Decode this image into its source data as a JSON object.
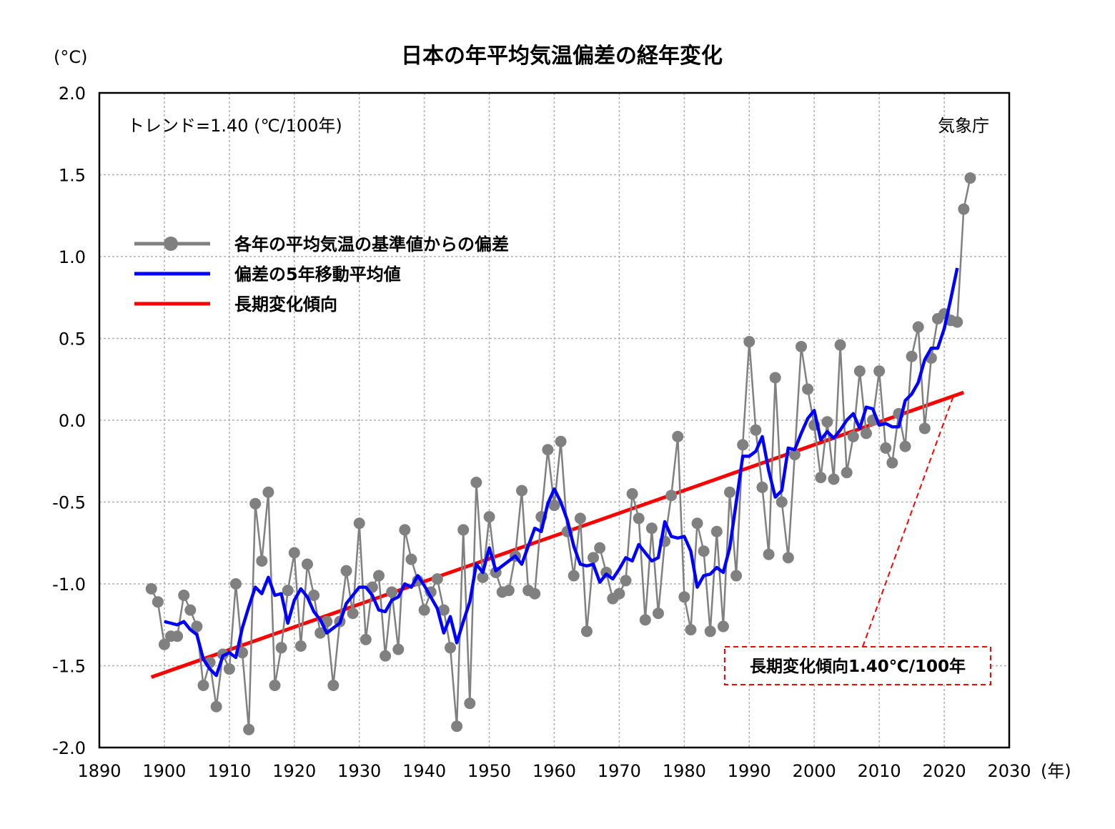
{
  "chart_data": {
    "type": "line",
    "title": "日本の年平均気温偏差の経年変化",
    "y_unit_label": "(°C)",
    "x_unit_label": "(年)",
    "trend_text": "トレンド=1.40 (℃/100年)",
    "source_text": "気象庁",
    "callout_text": "長期変化傾向1.40℃/100年",
    "xlim": [
      1890,
      2030
    ],
    "ylim": [
      -2.0,
      2.0
    ],
    "x_ticks": [
      1890,
      1900,
      1910,
      1920,
      1930,
      1940,
      1950,
      1960,
      1970,
      1980,
      1990,
      2000,
      2010,
      2020,
      2030
    ],
    "y_ticks": [
      2.0,
      1.5,
      1.0,
      0.5,
      0.0,
      -0.5,
      -1.0,
      -1.5,
      -2.0
    ],
    "x_tick_labels": [
      "1890",
      "1900",
      "1910",
      "1920",
      "1930",
      "1940",
      "1950",
      "1960",
      "1970",
      "1980",
      "1990",
      "2000",
      "2010",
      "2020",
      "2030"
    ],
    "y_tick_labels": [
      "2.0",
      "1.5",
      "1.0",
      "0.5",
      "0.0",
      "-0.5",
      "-1.0",
      "-1.5",
      "-2.0"
    ],
    "grid": true,
    "legend_position": "upper-left",
    "colors": {
      "annual": "#808080",
      "moving_avg": "#0000ff",
      "trend": "#ff0000",
      "callout": "#ff0000",
      "grid": "#b0b0b0"
    },
    "series": [
      {
        "name": "各年の平均気温の基準値からの偏差",
        "style": "line-markers",
        "x": [
          1898,
          1899,
          1900,
          1901,
          1902,
          1903,
          1904,
          1905,
          1906,
          1907,
          1908,
          1909,
          1910,
          1911,
          1912,
          1913,
          1914,
          1915,
          1916,
          1917,
          1918,
          1919,
          1920,
          1921,
          1922,
          1923,
          1924,
          1925,
          1926,
          1927,
          1928,
          1929,
          1930,
          1931,
          1932,
          1933,
          1934,
          1935,
          1936,
          1937,
          1938,
          1939,
          1940,
          1941,
          1942,
          1943,
          1944,
          1945,
          1946,
          1947,
          1948,
          1949,
          1950,
          1951,
          1952,
          1953,
          1954,
          1955,
          1956,
          1957,
          1958,
          1959,
          1960,
          1961,
          1962,
          1963,
          1964,
          1965,
          1966,
          1967,
          1968,
          1969,
          1970,
          1971,
          1972,
          1973,
          1974,
          1975,
          1976,
          1977,
          1978,
          1979,
          1980,
          1981,
          1982,
          1983,
          1984,
          1985,
          1986,
          1987,
          1988,
          1989,
          1990,
          1991,
          1992,
          1993,
          1994,
          1995,
          1996,
          1997,
          1998,
          1999,
          2000,
          2001,
          2002,
          2003,
          2004,
          2005,
          2006,
          2007,
          2008,
          2009,
          2010,
          2011,
          2012,
          2013,
          2014,
          2015,
          2016,
          2017,
          2018,
          2019,
          2020,
          2021,
          2022,
          2023,
          2024
        ],
        "values": [
          -1.03,
          -1.11,
          -1.37,
          -1.32,
          -1.32,
          -1.07,
          -1.16,
          -1.26,
          -1.62,
          -1.48,
          -1.75,
          -1.43,
          -1.52,
          -1.0,
          -1.42,
          -1.89,
          -0.51,
          -0.86,
          -0.44,
          -1.62,
          -1.39,
          -1.04,
          -0.81,
          -1.38,
          -0.88,
          -1.07,
          -1.3,
          -1.23,
          -1.62,
          -1.23,
          -0.92,
          -1.18,
          -0.63,
          -1.34,
          -1.02,
          -0.95,
          -1.44,
          -1.05,
          -1.4,
          -0.67,
          -0.85,
          -0.98,
          -1.16,
          -1.05,
          -0.97,
          -1.16,
          -1.39,
          -1.87,
          -0.67,
          -1.73,
          -0.38,
          -0.96,
          -0.59,
          -0.93,
          -1.05,
          -1.04,
          -0.83,
          -0.43,
          -1.04,
          -1.06,
          -0.59,
          -0.18,
          -0.52,
          -0.13,
          -0.68,
          -0.95,
          -0.6,
          -1.29,
          -0.84,
          -0.78,
          -0.93,
          -1.09,
          -1.06,
          -0.98,
          -0.45,
          -0.6,
          -1.22,
          -0.66,
          -1.18,
          -0.74,
          -0.46,
          -0.1,
          -1.08,
          -1.28,
          -0.63,
          -0.8,
          -1.29,
          -0.68,
          -1.26,
          -0.44,
          -0.95,
          -0.15,
          0.48,
          -0.06,
          -0.41,
          -0.82,
          0.26,
          -0.5,
          -0.84,
          -0.21,
          0.45,
          0.19,
          -0.03,
          -0.35,
          -0.01,
          -0.36,
          0.46,
          -0.32,
          -0.1,
          0.3,
          -0.08,
          0.0,
          0.3,
          -0.17,
          -0.26,
          0.04,
          -0.16,
          0.39,
          0.57,
          -0.05,
          0.38,
          0.62,
          0.65,
          0.61,
          0.6,
          1.29,
          1.48
        ]
      },
      {
        "name": "偏差の5年移動平均値",
        "style": "line",
        "x": [
          1900,
          1901,
          1902,
          1903,
          1904,
          1905,
          1906,
          1907,
          1908,
          1909,
          1910,
          1911,
          1912,
          1913,
          1914,
          1915,
          1916,
          1917,
          1918,
          1919,
          1920,
          1921,
          1922,
          1923,
          1924,
          1925,
          1926,
          1927,
          1928,
          1929,
          1930,
          1931,
          1932,
          1933,
          1934,
          1935,
          1936,
          1937,
          1938,
          1939,
          1940,
          1941,
          1942,
          1943,
          1944,
          1945,
          1946,
          1947,
          1948,
          1949,
          1950,
          1951,
          1952,
          1953,
          1954,
          1955,
          1956,
          1957,
          1958,
          1959,
          1960,
          1961,
          1962,
          1963,
          1964,
          1965,
          1966,
          1967,
          1968,
          1969,
          1970,
          1971,
          1972,
          1973,
          1974,
          1975,
          1976,
          1977,
          1978,
          1979,
          1980,
          1981,
          1982,
          1983,
          1984,
          1985,
          1986,
          1987,
          1988,
          1989,
          1990,
          1991,
          1992,
          1993,
          1994,
          1995,
          1996,
          1997,
          1998,
          1999,
          2000,
          2001,
          2002,
          2003,
          2004,
          2005,
          2006,
          2007,
          2008,
          2009,
          2010,
          2011,
          2012,
          2013,
          2014,
          2015,
          2016,
          2017,
          2018,
          2019,
          2020,
          2021,
          2022
        ],
        "values": [
          -1.23,
          -1.24,
          -1.25,
          -1.23,
          -1.28,
          -1.31,
          -1.46,
          -1.52,
          -1.56,
          -1.44,
          -1.42,
          -1.45,
          -1.27,
          -1.14,
          -1.02,
          -1.06,
          -0.96,
          -1.07,
          -1.06,
          -1.24,
          -1.1,
          -1.03,
          -1.08,
          -1.17,
          -1.22,
          -1.3,
          -1.27,
          -1.24,
          -1.12,
          -1.07,
          -1.02,
          -1.02,
          -1.07,
          -1.16,
          -1.17,
          -1.1,
          -1.08,
          -1.0,
          -1.02,
          -0.95,
          -1.01,
          -1.08,
          -1.15,
          -1.3,
          -1.2,
          -1.36,
          -1.23,
          -1.11,
          -0.88,
          -0.93,
          -0.78,
          -0.92,
          -0.89,
          -0.86,
          -0.83,
          -0.88,
          -0.77,
          -0.66,
          -0.68,
          -0.51,
          -0.42,
          -0.5,
          -0.61,
          -0.77,
          -0.88,
          -0.89,
          -0.88,
          -0.99,
          -0.94,
          -0.97,
          -0.91,
          -0.84,
          -0.86,
          -0.76,
          -0.81,
          -0.86,
          -0.84,
          -0.62,
          -0.71,
          -0.72,
          -0.71,
          -0.8,
          -1.02,
          -0.95,
          -0.94,
          -0.9,
          -0.93,
          -0.78,
          -0.5,
          -0.22,
          -0.22,
          -0.19,
          -0.1,
          -0.31,
          -0.47,
          -0.43,
          -0.17,
          -0.18,
          -0.08,
          0.01,
          0.06,
          -0.12,
          -0.07,
          -0.11,
          -0.06,
          0.0,
          0.04,
          -0.05,
          0.08,
          0.07,
          -0.03,
          -0.02,
          -0.04,
          -0.04,
          0.12,
          0.16,
          0.23,
          0.37,
          0.44,
          0.44,
          0.56,
          0.74,
          0.93
        ]
      },
      {
        "name": "長期変化傾向",
        "style": "line",
        "x": [
          1898,
          2023
        ],
        "values": [
          -1.57,
          0.17
        ]
      }
    ]
  }
}
